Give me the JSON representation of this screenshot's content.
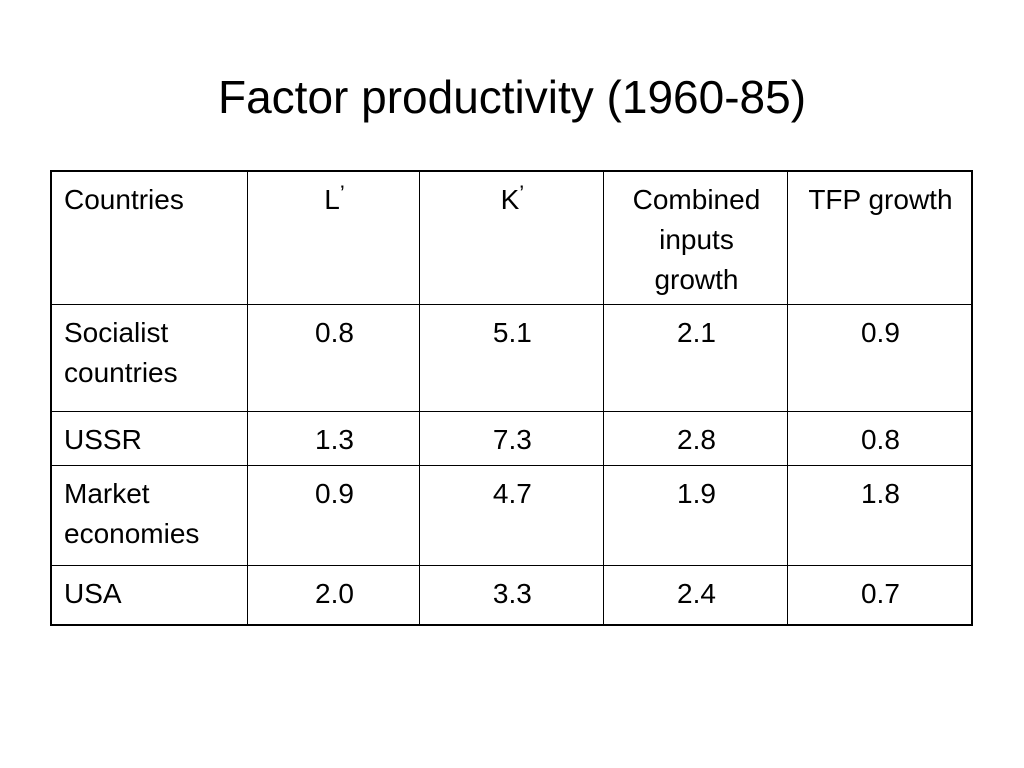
{
  "slide": {
    "title": "Factor productivity (1960-85)"
  },
  "table": {
    "headers": {
      "countries": "Countries",
      "labor": "L",
      "capital": "K",
      "prime": "’",
      "combined": "Combined inputs growth",
      "tfp": "TFP growth"
    },
    "rows": [
      {
        "country": "Socialist countries",
        "L": "0.8",
        "K": "5.1",
        "combined": "2.1",
        "tfp": "0.9"
      },
      {
        "country": "USSR",
        "L": "1.3",
        "K": "7.3",
        "combined": "2.8",
        "tfp": "0.8"
      },
      {
        "country": "Market economies",
        "L": "0.9",
        "K": "4.7",
        "combined": "1.9",
        "tfp": "1.8"
      },
      {
        "country": "USA",
        "L": "2.0",
        "K": "3.3",
        "combined": "2.4",
        "tfp": "0.7"
      }
    ]
  }
}
